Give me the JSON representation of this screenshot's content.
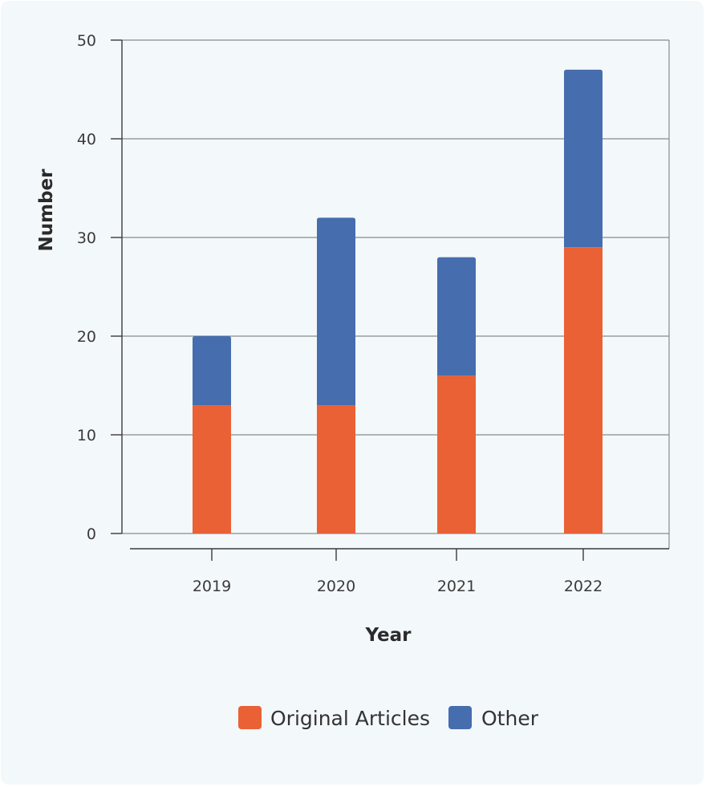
{
  "chart_data": {
    "type": "bar",
    "stacked": true,
    "categories": [
      "2019",
      "2020",
      "2021",
      "2022"
    ],
    "series": [
      {
        "name": "Original Articles",
        "values": [
          13,
          13,
          16,
          29
        ],
        "color": "#e96135"
      },
      {
        "name": "Other",
        "values": [
          7,
          19,
          12,
          18
        ],
        "color": "#466dae"
      }
    ],
    "xlabel": "Year",
    "ylabel": "Number",
    "ylim": [
      0,
      50
    ],
    "yticks": [
      "0",
      "10",
      "20",
      "30",
      "40",
      "50"
    ],
    "grid": true,
    "legend": "bottom"
  },
  "colors": {
    "background": "#f3f8fb",
    "gridline": "#8a8a8a",
    "axis": "#3a3a3a"
  }
}
